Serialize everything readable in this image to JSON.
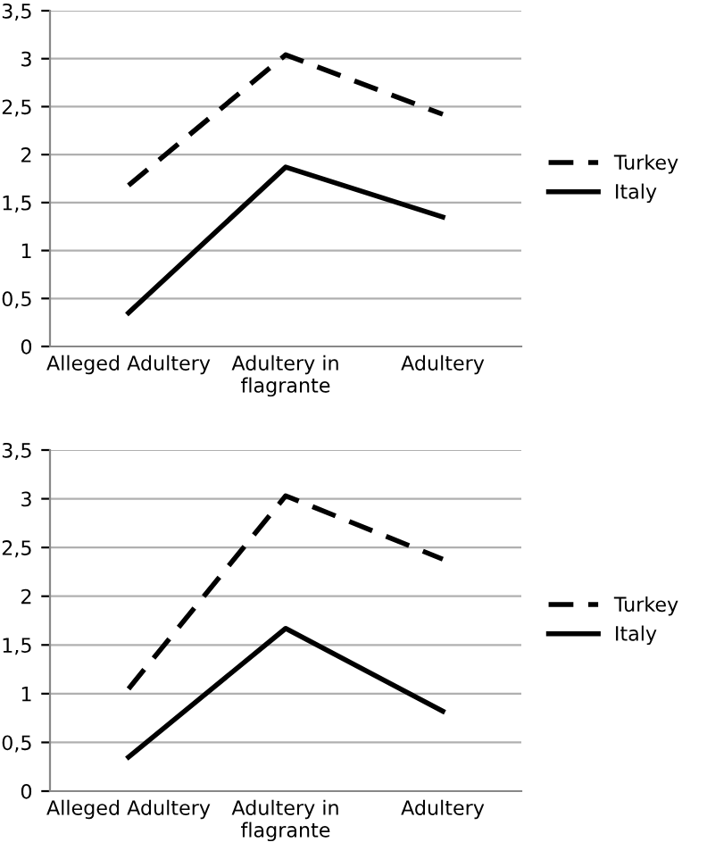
{
  "chart_data": [
    {
      "type": "line",
      "categories": [
        "Alleged Adultery",
        "Adultery in\nflagrante",
        "Adultery"
      ],
      "series": [
        {
          "name": "Turkey",
          "color": "#000000",
          "line_style": "dashed",
          "values": [
            1.68,
            3.04,
            2.42
          ]
        },
        {
          "name": "Italy",
          "color": "#000000",
          "line_style": "solid",
          "values": [
            0.35,
            1.87,
            1.35
          ]
        }
      ],
      "ylim": [
        0,
        3.5
      ],
      "yticks": [
        0,
        {
          "value": 0.5,
          "label": "0,5"
        },
        1,
        {
          "value": 1.5,
          "label": "1,5"
        },
        2,
        {
          "value": 2.5,
          "label": "2,5"
        },
        3,
        {
          "value": 3.5,
          "label": "3,5"
        }
      ],
      "grid": "y",
      "legend": "right",
      "marker": "none"
    },
    {
      "type": "line",
      "categories": [
        "Alleged Adultery",
        "Adultery in\nflagrante",
        "Adultery"
      ],
      "series": [
        {
          "name": "Turkey",
          "color": "#000000",
          "line_style": "dashed",
          "values": [
            1.05,
            3.03,
            2.38
          ]
        },
        {
          "name": "Italy",
          "color": "#000000",
          "line_style": "solid",
          "values": [
            0.35,
            1.67,
            0.82
          ]
        }
      ],
      "ylim": [
        0,
        3.5
      ],
      "yticks": [
        0,
        {
          "value": 0.5,
          "label": "0,5"
        },
        1,
        {
          "value": 1.5,
          "label": "1,5"
        },
        2,
        {
          "value": 2.5,
          "label": "2,5"
        },
        3,
        {
          "value": 3.5,
          "label": "3,5"
        }
      ],
      "grid": "y",
      "legend": "right",
      "marker": "none"
    }
  ]
}
